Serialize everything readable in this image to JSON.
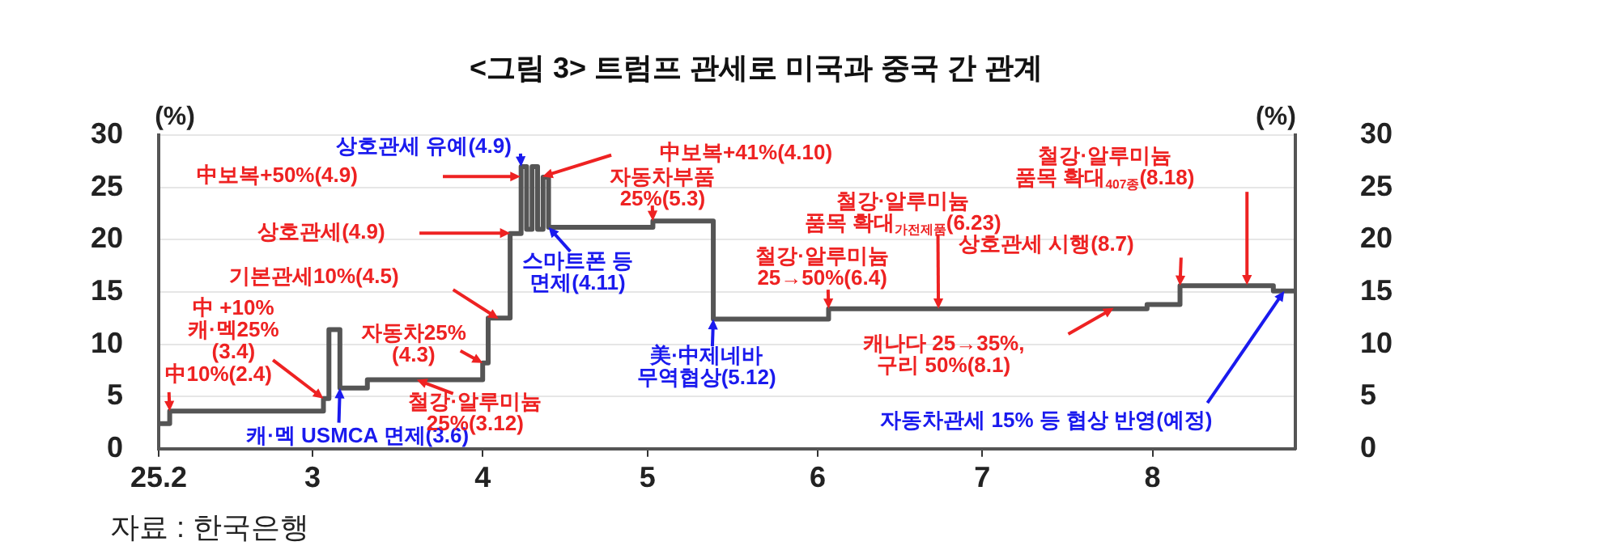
{
  "chart_data": {
    "type": "step",
    "title": "<그림 3> 트럼프 관세로 미국과 중국 간 관계",
    "ylabel": "(%)",
    "y2label": "(%)",
    "x": [
      "--02-01",
      "--02-03",
      "--03-03",
      "--03-04",
      "--03-06",
      "--03-11",
      "--04-01",
      "--04-02",
      "--04-06",
      "--04-08",
      "--04-09",
      "--04-10",
      "--04-11",
      "--04-12",
      "--04-13",
      "--05-02",
      "--05-13",
      "--06-03",
      "--07-31",
      "--08-06",
      "--08-23",
      "--08-27"
    ],
    "series": [
      {
        "color": "#555555",
        "values": [
          2.4,
          3.6,
          4.8,
          11.4,
          5.8,
          6.6,
          8.2,
          12.5,
          20.6,
          27,
          21,
          27,
          21,
          26,
          21.2,
          21.8,
          12.4,
          13.4,
          13.8,
          15.6,
          15.1,
          15.1
        ]
      }
    ],
    "xlim": [
      "--02-01",
      "--08-27"
    ],
    "xticks": [
      {
        "value": "--02-01",
        "label": "25.2"
      },
      {
        "value": "--03-01",
        "label": "3"
      },
      {
        "value": "--04-01",
        "label": "4"
      },
      {
        "value": "--05-01",
        "label": "5"
      },
      {
        "value": "--06-01",
        "label": "6"
      },
      {
        "value": "--07-01",
        "label": "7"
      },
      {
        "value": "--08-01",
        "label": "8"
      }
    ],
    "ylim": [
      0,
      30
    ],
    "yticks": [
      0,
      5,
      10,
      15,
      20,
      25,
      30
    ],
    "y2lim": [
      0,
      30
    ],
    "y2ticks": [
      0,
      5,
      10,
      15,
      20,
      25,
      30
    ],
    "grid": "y",
    "legend": false,
    "annotations": [
      {
        "text": "中10%(2.4)",
        "x": "--02-03",
        "y": 3.6
      },
      {
        "text": "中 +10%\n캐·멕25%\n(3.4)",
        "x": "--03-03",
        "y": 4.8
      },
      {
        "text": "캐·멕 USMCA 면제(3.6)",
        "x": "--03-06",
        "y": 5.8
      },
      {
        "text": "철강·알루미늄\n25%(3.12)",
        "x": "--03-20",
        "y": 6.6
      },
      {
        "text": "자동차25%\n(4.3)",
        "x": "--04-01",
        "y": 8.2
      },
      "기본관세10%(4.5)",
      "상호관세(4.9)",
      "中보복+50%(4.9)",
      {
        "text": "상호관세 유예(4.9)",
        "x": "--04-08",
        "y": 27
      },
      "中보복+41%(4.10)",
      {
        "text": "스마트폰 등\n면제(4.11)",
        "x": "--04-13",
        "y": 21.2
      },
      {
        "text": "자동차부품\n25%(5.3)",
        "x": "--05-02",
        "y": 21.8
      },
      {
        "text": "美·中제네바\n무역협상(5.12)",
        "x": "--05-13",
        "y": 12.4
      },
      {
        "text": "철강·알루미늄\n25→50%(6.4)",
        "x": "--06-03",
        "y": 13.4
      },
      {
        "text": "철강·알루미늄\n품목 확대$_{가전제품}$(6.23)",
        "x": "--06-23",
        "y": 13.4
      },
      {
        "text": "상호관세 시행(8.7)",
        "x": "--08-06",
        "y": 15.6
      },
      "철강·알루미늄\n품목 확대$_{407종}$(8.18)",
      "캐나다 25→35%,\n구리 50%(8.1)",
      {
        "text": "자동차관세 15% 등 협상 반영(예정)",
        "x": "--08-25",
        "y": 15.1
      },
      "자료 : 한국은행"
    ]
  }
}
